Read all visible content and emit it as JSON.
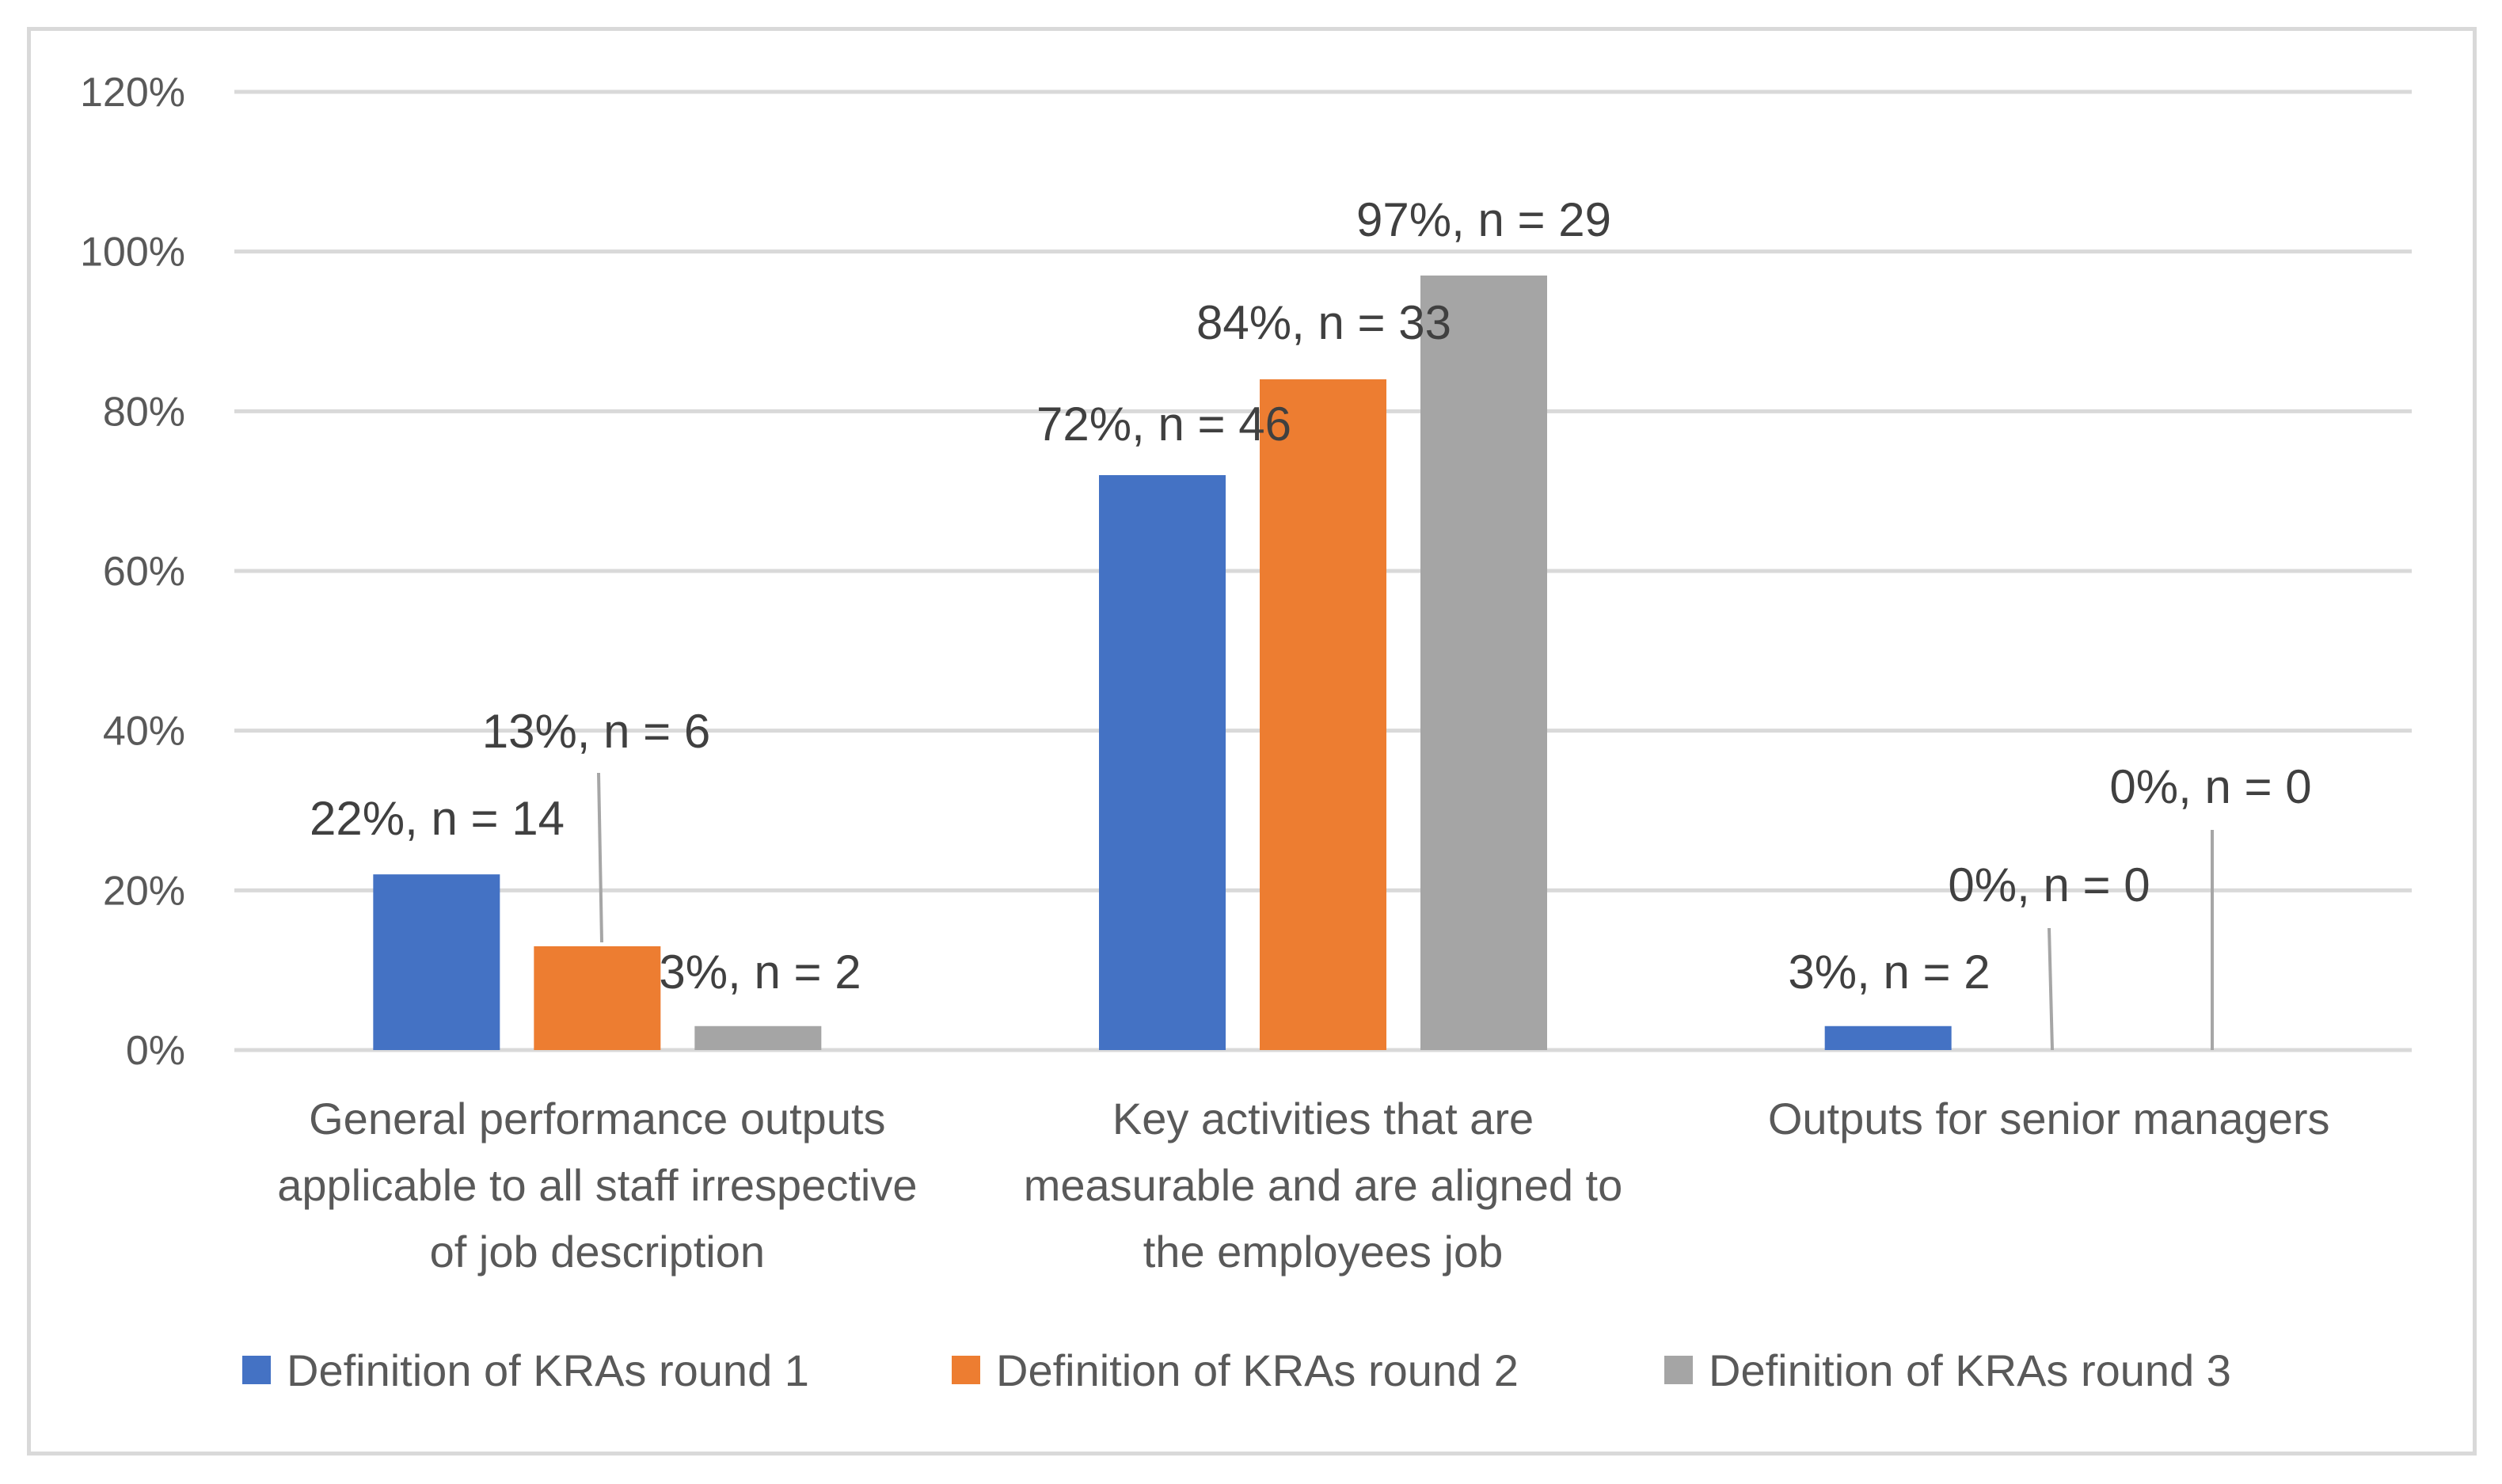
{
  "chart_data": {
    "type": "bar",
    "title": "",
    "xlabel": "",
    "ylabel": "",
    "ylim": [
      0,
      1.2
    ],
    "y_ticks": [
      {
        "value": 0,
        "label": "0%"
      },
      {
        "value": 0.2,
        "label": "20%"
      },
      {
        "value": 0.4,
        "label": "40%"
      },
      {
        "value": 0.6,
        "label": "60%"
      },
      {
        "value": 0.8,
        "label": "80%"
      },
      {
        "value": 1.0,
        "label": "100%"
      },
      {
        "value": 1.2,
        "label": "120%"
      }
    ],
    "grid": true,
    "legend_position": "bottom",
    "categories": [
      [
        "General performance outputs",
        "applicable to all staff irrespective",
        "of job description"
      ],
      [
        "Key activities that are",
        "measurable and are aligned to",
        "the employees job"
      ],
      [
        "Outputs for senior managers"
      ]
    ],
    "series": [
      {
        "name": "Definition of KRAs round 1",
        "color": "#4472c4",
        "values": [
          0.22,
          0.72,
          0.03
        ],
        "labels": [
          "22%, n = 14",
          "72%, n = 46",
          "3%, n = 2"
        ]
      },
      {
        "name": "Definition of KRAs round 2",
        "color": "#ed7d31",
        "values": [
          0.13,
          0.84,
          0
        ],
        "labels": [
          "13%, n = 6",
          "84%, n = 33",
          "0%, n = 0"
        ]
      },
      {
        "name": "Definition of KRAs round 3",
        "color": "#a5a5a5",
        "values": [
          0.03,
          0.97,
          0
        ],
        "labels": [
          "3%, n = 2",
          "97%, n = 29",
          "0%, n = 0"
        ]
      }
    ]
  }
}
